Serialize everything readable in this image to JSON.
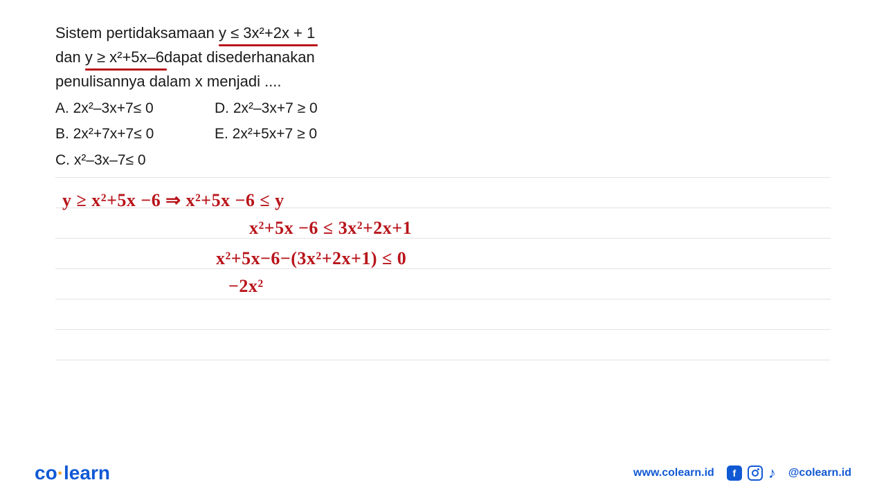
{
  "question": {
    "line1_pre": "Sistem pertidaksamaan ",
    "line1_underlined": "y ≤ 3x²+2x + 1",
    "line2_pre": "dan ",
    "line2_underlined": "y ≥ x²+5x–6 ",
    "line2_post": "dapat disederhanakan",
    "line3": "penulisannya dalam x menjadi ...."
  },
  "options": {
    "A": "A. 2x²–3x+7≤ 0",
    "D": "D. 2x²–3x+7 ≥ 0",
    "B": "B. 2x²+7x+7≤ 0",
    "E": "E. 2x²+5x+7 ≥ 0",
    "C": "C. x²–3x–7≤ 0"
  },
  "handwriting": {
    "hw1": "y ≥ x²+5x −6   ⇒  x²+5x −6 ≤ y",
    "hw2": "x²+5x −6  ≤  3x²+2x+1",
    "hw3": "x²+5x−6−(3x²+2x+1) ≤ 0",
    "hw4": "−2x²"
  },
  "footer": {
    "logo_co": "co",
    "logo_dot": "·",
    "logo_learn": "learn",
    "website": "www.colearn.id",
    "handle": "@colearn.id",
    "fb_letter": "f"
  },
  "styling": {
    "text_color": "#1a1a1a",
    "handwriting_color": "#b8151b",
    "brand_color": "#1159d4",
    "accent_color": "#f5a623",
    "rule_color": "#e3e3e3",
    "question_fontsize": 22,
    "option_fontsize": 21,
    "handwriting_fontsize": 26,
    "logo_fontsize": 28,
    "ruled_line_height": 44,
    "underline_thickness": 3
  }
}
